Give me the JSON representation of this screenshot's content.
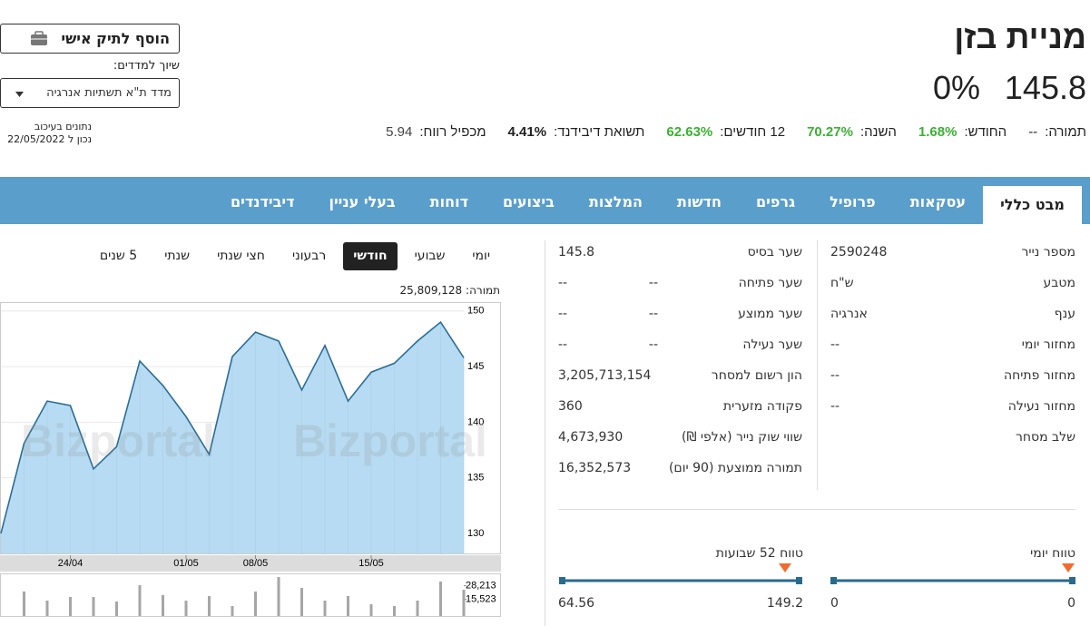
{
  "header": {
    "title": "מניית בזן",
    "price": "145.8",
    "change": "0%",
    "add_button": "הוסף לתיק אישי",
    "index_label": "שיוך למדדים:",
    "index_select": "מדד ת\"א תשתיות אנרגיה",
    "delay_note": "נתונים בעיכוב",
    "date_note": "נכון ל 22/05/2022"
  },
  "stats": [
    {
      "label": "תמורה:",
      "value": "--",
      "tone": "plain"
    },
    {
      "label": "החודש:",
      "value": "1.68%",
      "tone": "up"
    },
    {
      "label": "השנה:",
      "value": "70.27%",
      "tone": "up"
    },
    {
      "label": "12 חודשים:",
      "value": "62.63%",
      "tone": "up"
    },
    {
      "label": "תשואת דיבידנד:",
      "value": "4.41%",
      "tone": "bold"
    },
    {
      "label": "מכפיל רווח:",
      "value": "5.94",
      "tone": "muted"
    }
  ],
  "tabs": [
    "מבט כללי",
    "עסקאות",
    "פרופיל",
    "גרפים",
    "חדשות",
    "המלצות",
    "ביצועים",
    "דוחות",
    "בעלי עניין",
    "דיבידנדים"
  ],
  "active_tab": 0,
  "info_right": [
    {
      "label": "מספר נייר",
      "value": "2590248"
    },
    {
      "label": "מטבע",
      "value": "ש\"ח"
    },
    {
      "label": "ענף",
      "value": "אנרגיה"
    },
    {
      "label": "מחזור יומי",
      "value": "--"
    },
    {
      "label": "מחזור פתיחה",
      "value": "--"
    },
    {
      "label": "מחזור נעילה",
      "value": "--"
    },
    {
      "label": "שלב מסחר"
    }
  ],
  "info_middle": [
    {
      "label": "שער בסיס",
      "value": "145.8"
    },
    {
      "label": "שער פתיחה",
      "value": "--",
      "change": "--"
    },
    {
      "label": "שער ממוצע",
      "value": "--",
      "change": "--"
    },
    {
      "label": "שער נעילה",
      "value": "--",
      "change": "--"
    },
    {
      "label": "הון רשום למסחר",
      "value": "3,205,713,154"
    },
    {
      "label": "פקודה מזערית",
      "value": "360"
    },
    {
      "label": "שווי שוק נייר (אלפי ₪)",
      "value": "4,673,930"
    },
    {
      "label": "תמורה ממוצעת (90 יום)",
      "value": "16,352,573"
    }
  ],
  "ranges": [
    {
      "label": "טווח יומי",
      "low": "0",
      "high": "0"
    },
    {
      "label": "טווח 52 שבועות",
      "low": "64.56",
      "high": "149.2"
    }
  ],
  "chart_periods": [
    "יומי",
    "שבועי",
    "חודשי",
    "רבעוני",
    "חצי שנתי",
    "שנתי",
    "5 שנים"
  ],
  "active_period": 2,
  "chart_data": {
    "type": "area",
    "volume_label": "תמורה:",
    "volume_total": "25,809,128",
    "watermark": "Bizportal",
    "categories": [
      null,
      null,
      null,
      "24/04",
      null,
      null,
      null,
      null,
      "01/05",
      null,
      null,
      "08/05",
      null,
      null,
      null,
      null,
      "15/05",
      null,
      null,
      null,
      null
    ],
    "values": [
      130.0,
      138.1,
      141.9,
      141.5,
      135.8,
      137.8,
      145.5,
      143.3,
      140.5,
      137.1,
      145.9,
      148.1,
      147.3,
      142.9,
      146.9,
      141.9,
      144.5,
      145.3,
      147.3,
      149.0,
      145.8
    ],
    "color": "#2b6e96",
    "fill": "#b7dbf2",
    "ylim": [
      128.2,
      150.8
    ],
    "yticks": [
      130,
      135,
      140,
      145,
      150
    ],
    "grid": true,
    "volumes": [
      null,
      22842,
      14382,
      17766,
      17766,
      13536,
      28764,
      19458,
      14382,
      18612,
      9306,
      22842,
      36378,
      26226,
      14382,
      18612,
      10998,
      9306,
      14382,
      32148,
      24534
    ],
    "volume_color": "#a6a6a6",
    "volume_ylim": [
      0,
      39760
    ],
    "volume_yticks": [
      {
        "value": 28213,
        "label": "28,213"
      },
      {
        "value": 15523,
        "label": "15,523"
      }
    ]
  }
}
